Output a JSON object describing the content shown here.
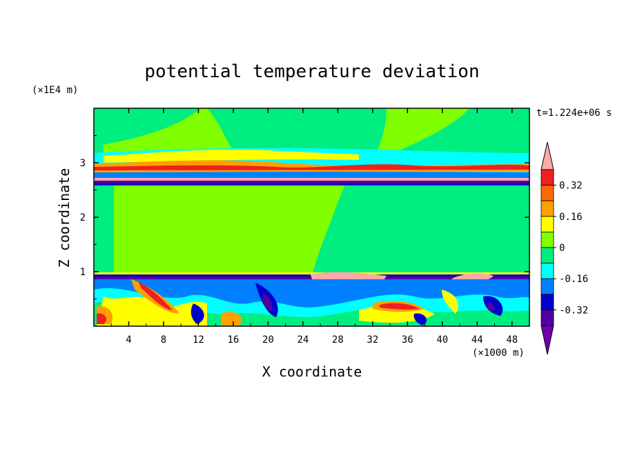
{
  "chart_data": {
    "type": "heatmap",
    "title": "potential temperature deviation",
    "xlabel": "X coordinate",
    "ylabel": "Z coordinate",
    "x_unit": "(×1000 m)",
    "y_unit": "(×1E4 m)",
    "time_label": "t=1.224e+06 s",
    "xlim": [
      0,
      50
    ],
    "ylim": [
      0,
      4
    ],
    "x_ticks": [
      "4",
      "8",
      "12",
      "16",
      "20",
      "24",
      "28",
      "32",
      "36",
      "40",
      "44",
      "48"
    ],
    "y_ticks": [
      "1",
      "2",
      "3"
    ],
    "colorbar": {
      "levels": [
        -0.4,
        -0.32,
        -0.24,
        -0.16,
        -0.08,
        0,
        0.08,
        0.16,
        0.24,
        0.32,
        0.4
      ],
      "labels": [
        "0.32",
        "0.16",
        "0",
        "-0.16",
        "-0.32"
      ],
      "colors": [
        "#ffa8a8",
        "#ee2020",
        "#ff6a00",
        "#ffa000",
        "#ffff00",
        "#80ff00",
        "#00ee80",
        "#00ffff",
        "#0080ff",
        "#0000cc",
        "#5000a0",
        "#7000aa"
      ]
    },
    "field_features": {
      "upper_layer_z": [
        2.6,
        3.0
      ],
      "lower_layer_z": [
        0.85,
        0.95
      ],
      "turbulent_region_z": [
        0,
        0.85
      ],
      "positive_region_x": [
        0,
        23
      ],
      "neutral_region_x": [
        23,
        50
      ]
    }
  }
}
